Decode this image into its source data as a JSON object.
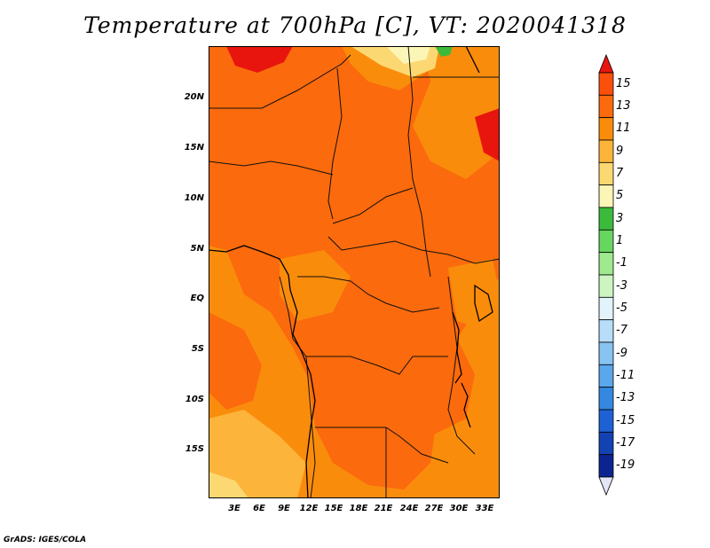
{
  "title": "Temperature at 700hPa [C], VT: 2020041318",
  "credit": "GrADS: IGES/COLA",
  "map": {
    "variable": "Temperature",
    "level": "700hPa",
    "units": "C",
    "valid_time": "2020041318",
    "region": "Central Africa",
    "lat_labels": [
      "20N",
      "15N",
      "10N",
      "5N",
      "EQ",
      "5S",
      "10S",
      "15S"
    ],
    "lon_labels": [
      "3E",
      "6E",
      "9E",
      "12E",
      "15E",
      "18E",
      "21E",
      "24E",
      "27E",
      "30E",
      "33E"
    ]
  },
  "colorbar": {
    "labels": [
      "15",
      "13",
      "11",
      "9",
      "7",
      "5",
      "3",
      "1",
      "-1",
      "-3",
      "-5",
      "-7",
      "-9",
      "-11",
      "-13",
      "-15",
      "-17",
      "-19"
    ],
    "colors": [
      "#e8150f",
      "#fb4f0c",
      "#fb6a0c",
      "#fa8c0c",
      "#fcb53a",
      "#fcd873",
      "#fbf6b6",
      "#3bba3b",
      "#67d65f",
      "#9fea8e",
      "#ccf5c2",
      "#e2f3fb",
      "#b7ddf8",
      "#88c4f2",
      "#5aa7ec",
      "#3488e0",
      "#1d61d4",
      "#1342b3",
      "#0b2490",
      "#061262"
    ],
    "top_color": "#e8150f",
    "bottom_color": "#e4e6f7"
  },
  "palette": {
    "c13": "#fb6a0c",
    "c11": "#fa8c0c",
    "c9": "#fcb53a",
    "c7": "#fcd873",
    "c5": "#fbf6b6",
    "c15": "#e8150f",
    "green": "#3bba3b"
  }
}
